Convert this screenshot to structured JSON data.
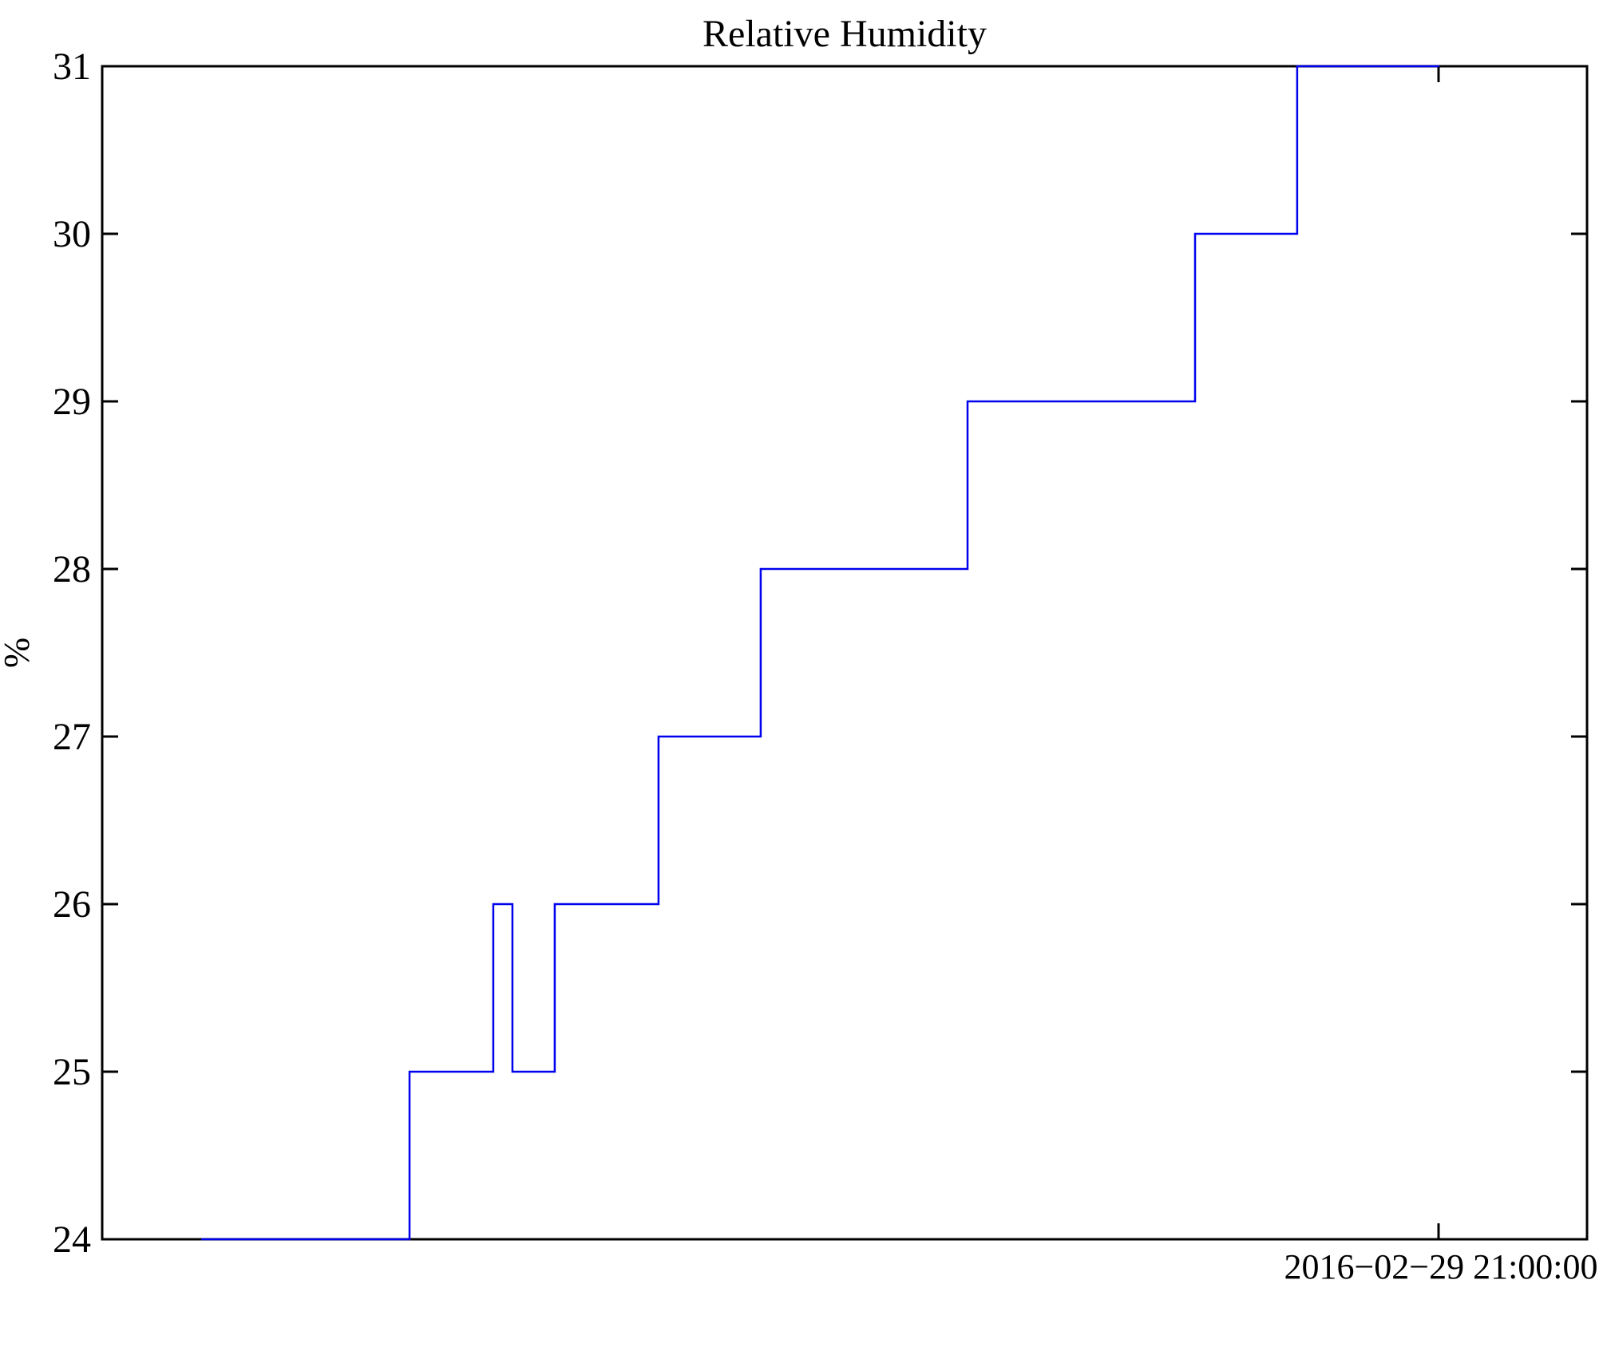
{
  "page": {
    "background_color": "#ffffff",
    "kind": "plot-window"
  },
  "chart_data": {
    "type": "line",
    "line_style": "step",
    "title": "Relative Humidity",
    "xlabel": "",
    "ylabel": "%",
    "ylim": [
      24,
      31
    ],
    "grid": false,
    "legend": false,
    "line_color": "#0000ee",
    "axis_color": "#000000",
    "y_axis": {
      "label": "%",
      "ticks": [
        24,
        25,
        26,
        27,
        28,
        29,
        30,
        31
      ],
      "mirrored_right": true,
      "ticks_inward": true
    },
    "x_axis": {
      "ticks": [
        {
          "frac": 0.9,
          "label": "2016−02−29 21:00:00"
        }
      ],
      "mirrored_top": true,
      "ticks_inward": true
    },
    "series": [
      {
        "name": "Relative Humidity",
        "unit": "%",
        "comment_values_are": "[x_fraction_of_plot_width, humidity_percent] vertices of the step line",
        "points": [
          [
            0.0667,
            24
          ],
          [
            0.207,
            24
          ],
          [
            0.207,
            25
          ],
          [
            0.2634,
            25
          ],
          [
            0.2634,
            26
          ],
          [
            0.2763,
            26
          ],
          [
            0.2763,
            25
          ],
          [
            0.3048,
            25
          ],
          [
            0.3048,
            26
          ],
          [
            0.3747,
            26
          ],
          [
            0.3747,
            27
          ],
          [
            0.4435,
            27
          ],
          [
            0.4435,
            28
          ],
          [
            0.5828,
            28
          ],
          [
            0.5828,
            29
          ],
          [
            0.736,
            29
          ],
          [
            0.736,
            30
          ],
          [
            0.8048,
            30
          ],
          [
            0.8048,
            31
          ],
          [
            0.9005,
            31
          ]
        ],
        "plateau_values_in_order": [
          24,
          25,
          26,
          25,
          26,
          27,
          28,
          29,
          30,
          31
        ]
      }
    ]
  }
}
